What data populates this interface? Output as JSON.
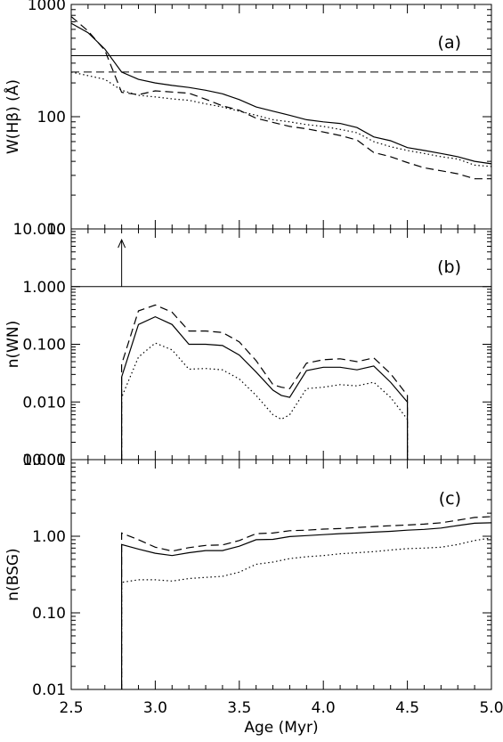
{
  "chart_data": [
    {
      "id": "a",
      "type": "line",
      "panel_label": "(a)",
      "ylabel": "W(Hβ) (Å)",
      "yscale": "log",
      "ylim": [
        10,
        1000
      ],
      "xlim": [
        2.5,
        5.0
      ],
      "yticks": [
        {
          "value": 10,
          "label": "10"
        },
        {
          "value": 100,
          "label": "100"
        },
        {
          "value": 1000,
          "label": "1000"
        }
      ],
      "series": [
        {
          "style": "solid",
          "x": [
            2.5,
            2.6,
            2.7,
            2.8,
            2.9,
            3.0,
            3.1,
            3.2,
            3.3,
            3.4,
            3.5,
            3.6,
            3.7,
            3.8,
            3.9,
            4.0,
            4.1,
            4.2,
            4.3,
            4.4,
            4.5,
            4.6,
            4.7,
            4.8,
            4.9,
            5.0
          ],
          "y": [
            680,
            560,
            400,
            250,
            215,
            200,
            190,
            182,
            172,
            160,
            142,
            122,
            112,
            103,
            94,
            90,
            87,
            80,
            66,
            61,
            53,
            50,
            47,
            44,
            40,
            38
          ]
        },
        {
          "style": "dashed",
          "x": [
            2.5,
            2.6,
            2.7,
            2.8,
            2.9,
            3.0,
            3.1,
            3.2,
            3.3,
            3.4,
            3.5,
            3.6,
            3.7,
            3.8,
            3.9,
            4.0,
            4.1,
            4.2,
            4.3,
            4.4,
            4.5,
            4.6,
            4.7,
            4.8,
            4.9,
            5.0
          ],
          "y": [
            780,
            580,
            390,
            165,
            157,
            170,
            166,
            162,
            143,
            125,
            114,
            97,
            89,
            82,
            78,
            73,
            68,
            62,
            48,
            44,
            39,
            35,
            33,
            31,
            28,
            28
          ]
        },
        {
          "style": "dotted",
          "x": [
            2.5,
            2.6,
            2.7,
            2.8,
            2.9,
            3.0,
            3.1,
            3.2,
            3.3,
            3.4,
            3.5,
            3.6,
            3.7,
            3.8,
            3.9,
            4.0,
            4.1,
            4.2,
            4.3,
            4.4,
            4.5,
            4.6,
            4.7,
            4.8,
            4.9,
            5.0
          ],
          "y": [
            250,
            232,
            215,
            172,
            155,
            150,
            144,
            140,
            130,
            122,
            112,
            103,
            94,
            90,
            85,
            82,
            77,
            72,
            60,
            54,
            50,
            47,
            44,
            42,
            37,
            36
          ]
        }
      ],
      "hlines": [
        {
          "style": "solid",
          "y": 350
        },
        {
          "style": "dashed",
          "y": 250
        }
      ]
    },
    {
      "id": "b",
      "type": "line",
      "panel_label": "(b)",
      "ylabel": "n(WN)",
      "yscale": "log",
      "ylim": [
        0.001,
        10
      ],
      "xlim": [
        2.5,
        5.0
      ],
      "yticks": [
        {
          "value": 0.001,
          "label": "0.001"
        },
        {
          "value": 0.01,
          "label": "0.010"
        },
        {
          "value": 0.1,
          "label": "0.100"
        },
        {
          "value": 1,
          "label": "1.000"
        },
        {
          "value": 10,
          "label": "10.000"
        }
      ],
      "series": [
        {
          "style": "solid",
          "x": [
            2.8,
            2.8,
            2.9,
            3.0,
            3.1,
            3.2,
            3.3,
            3.4,
            3.5,
            3.6,
            3.7,
            3.75,
            3.8,
            3.9,
            4.0,
            4.1,
            4.2,
            4.3,
            4.4,
            4.5,
            4.5
          ],
          "y": [
            0.001,
            0.027,
            0.22,
            0.3,
            0.22,
            0.1,
            0.1,
            0.095,
            0.065,
            0.033,
            0.016,
            0.013,
            0.012,
            0.035,
            0.04,
            0.04,
            0.036,
            0.042,
            0.022,
            0.01,
            0.001
          ]
        },
        {
          "style": "dashed",
          "x": [
            2.8,
            2.8,
            2.9,
            3.0,
            3.1,
            3.2,
            3.3,
            3.4,
            3.5,
            3.6,
            3.7,
            3.75,
            3.8,
            3.9,
            4.0,
            4.1,
            4.2,
            4.3,
            4.4,
            4.5,
            4.5
          ],
          "y": [
            0.001,
            0.045,
            0.38,
            0.48,
            0.36,
            0.17,
            0.17,
            0.16,
            0.11,
            0.052,
            0.02,
            0.018,
            0.017,
            0.047,
            0.054,
            0.056,
            0.05,
            0.058,
            0.031,
            0.013,
            0.001
          ]
        },
        {
          "style": "dotted",
          "x": [
            2.8,
            2.8,
            2.9,
            3.0,
            3.1,
            3.2,
            3.3,
            3.4,
            3.5,
            3.6,
            3.7,
            3.75,
            3.8,
            3.9,
            4.0,
            4.1,
            4.2,
            4.3,
            4.4,
            4.5,
            4.5
          ],
          "y": [
            0.001,
            0.012,
            0.06,
            0.105,
            0.08,
            0.037,
            0.038,
            0.036,
            0.025,
            0.013,
            0.006,
            0.005,
            0.006,
            0.017,
            0.018,
            0.02,
            0.019,
            0.022,
            0.012,
            0.005,
            0.001
          ]
        }
      ],
      "hlines": [
        {
          "style": "solid",
          "y": 1.0
        }
      ],
      "arrow": {
        "x": 2.8,
        "y_from": 1.0,
        "y_to": 6.5
      }
    },
    {
      "id": "c",
      "type": "line",
      "panel_label": "(c)",
      "ylabel": "n(BSG)",
      "yscale": "log",
      "ylim": [
        0.01,
        10
      ],
      "xlim": [
        2.5,
        5.0
      ],
      "xlabel": "Age (Myr)",
      "yticks": [
        {
          "value": 0.01,
          "label": "0.01"
        },
        {
          "value": 0.1,
          "label": "0.10"
        },
        {
          "value": 1,
          "label": "1.00"
        },
        {
          "value": 10,
          "label": "10.00"
        }
      ],
      "xticks": [
        {
          "value": 2.5,
          "label": "2.5"
        },
        {
          "value": 3.0,
          "label": "3.0"
        },
        {
          "value": 3.5,
          "label": "3.5"
        },
        {
          "value": 4.0,
          "label": "4.0"
        },
        {
          "value": 4.5,
          "label": "4.5"
        },
        {
          "value": 5.0,
          "label": "5.0"
        }
      ],
      "series": [
        {
          "style": "solid",
          "x": [
            2.8,
            2.8,
            2.9,
            3.0,
            3.1,
            3.2,
            3.3,
            3.4,
            3.5,
            3.6,
            3.7,
            3.8,
            3.9,
            4.0,
            4.1,
            4.2,
            4.3,
            4.4,
            4.5,
            4.6,
            4.7,
            4.8,
            4.9,
            5.0
          ],
          "y": [
            0.01,
            0.78,
            0.68,
            0.6,
            0.56,
            0.61,
            0.65,
            0.65,
            0.74,
            0.9,
            0.91,
            0.99,
            1.02,
            1.05,
            1.08,
            1.1,
            1.13,
            1.16,
            1.2,
            1.23,
            1.28,
            1.38,
            1.48,
            1.5
          ]
        },
        {
          "style": "dashed",
          "x": [
            2.8,
            2.8,
            2.9,
            3.0,
            3.1,
            3.2,
            3.3,
            3.4,
            3.5,
            3.6,
            3.7,
            3.8,
            3.9,
            4.0,
            4.1,
            4.2,
            4.3,
            4.4,
            4.5,
            4.6,
            4.7,
            4.8,
            4.9,
            5.0
          ],
          "y": [
            0.01,
            1.1,
            0.9,
            0.72,
            0.64,
            0.71,
            0.76,
            0.77,
            0.88,
            1.08,
            1.1,
            1.18,
            1.2,
            1.24,
            1.26,
            1.3,
            1.34,
            1.37,
            1.4,
            1.44,
            1.5,
            1.62,
            1.76,
            1.8
          ]
        },
        {
          "style": "dotted",
          "x": [
            2.8,
            2.8,
            2.9,
            3.0,
            3.1,
            3.2,
            3.3,
            3.4,
            3.5,
            3.6,
            3.7,
            3.8,
            3.9,
            4.0,
            4.1,
            4.2,
            4.3,
            4.4,
            4.5,
            4.6,
            4.7,
            4.8,
            4.9,
            5.0
          ],
          "y": [
            0.01,
            0.25,
            0.27,
            0.27,
            0.26,
            0.28,
            0.29,
            0.3,
            0.34,
            0.43,
            0.46,
            0.51,
            0.54,
            0.56,
            0.59,
            0.61,
            0.63,
            0.66,
            0.69,
            0.7,
            0.72,
            0.78,
            0.88,
            0.95
          ]
        }
      ]
    }
  ]
}
